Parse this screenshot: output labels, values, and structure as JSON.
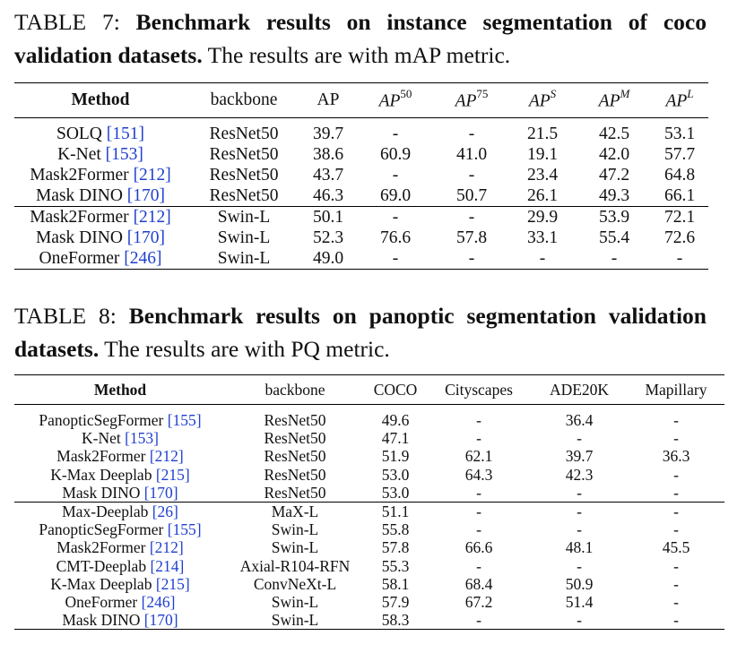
{
  "table7": {
    "caption_prefix": "TABLE 7: ",
    "caption_bold": "Benchmark results on instance segmentation of coco validation datasets.",
    "caption_rest": " The results are with mAP metric.",
    "headers": {
      "method": "Method",
      "backbone": "backbone",
      "ap": "AP",
      "ap50_base": "AP",
      "ap50_sup": "50",
      "ap75_base": "AP",
      "ap75_sup": "75",
      "aps_base": "AP",
      "aps_sup": "S",
      "apm_base": "AP",
      "apm_sup": "M",
      "apl_base": "AP",
      "apl_sup": "L"
    },
    "rows": [
      {
        "method": "SOLQ",
        "cite": "[151]",
        "backbone": "ResNet50",
        "ap": "39.7",
        "ap50": "-",
        "ap75": "-",
        "aps": "21.5",
        "apm": "42.5",
        "apl": "53.1"
      },
      {
        "method": "K-Net",
        "cite": "[153]",
        "backbone": "ResNet50",
        "ap": "38.6",
        "ap50": "60.9",
        "ap75": "41.0",
        "aps": "19.1",
        "apm": "42.0",
        "apl": "57.7"
      },
      {
        "method": "Mask2Former",
        "cite": "[212]",
        "backbone": "ResNet50",
        "ap": "43.7",
        "ap50": "-",
        "ap75": "-",
        "aps": "23.4",
        "apm": "47.2",
        "apl": "64.8"
      },
      {
        "method": "Mask DINO",
        "cite": "[170]",
        "backbone": "ResNet50",
        "ap": "46.3",
        "ap50": "69.0",
        "ap75": "50.7",
        "aps": "26.1",
        "apm": "49.3",
        "apl": "66.1"
      },
      {
        "method": "Mask2Former",
        "cite": "[212]",
        "backbone": "Swin-L",
        "ap": "50.1",
        "ap50": "-",
        "ap75": "-",
        "aps": "29.9",
        "apm": "53.9",
        "apl": "72.1"
      },
      {
        "method": "Mask DINO",
        "cite": "[170]",
        "backbone": "Swin-L",
        "ap": "52.3",
        "ap50": "76.6",
        "ap75": "57.8",
        "aps": "33.1",
        "apm": "55.4",
        "apl": "72.6"
      },
      {
        "method": "OneFormer",
        "cite": "[246]",
        "backbone": "Swin-L",
        "ap": "49.0",
        "ap50": "-",
        "ap75": "-",
        "aps": "-",
        "apm": "-",
        "apl": "-"
      }
    ]
  },
  "table8": {
    "caption_prefix": "TABLE 8: ",
    "caption_bold": "Benchmark results on panoptic segmentation validation datasets.",
    "caption_rest": " The results are with PQ metric.",
    "headers": {
      "method": "Method",
      "backbone": "backbone",
      "coco": "COCO",
      "cityscapes": "Cityscapes",
      "ade20k": "ADE20K",
      "mapillary": "Mapillary"
    },
    "rows": [
      {
        "method": "PanopticSegFormer",
        "cite": "[155]",
        "backbone": "ResNet50",
        "coco": "49.6",
        "cityscapes": "-",
        "ade20k": "36.4",
        "mapillary": "-"
      },
      {
        "method": "K-Net",
        "cite": "[153]",
        "backbone": "ResNet50",
        "coco": "47.1",
        "cityscapes": "-",
        "ade20k": "-",
        "mapillary": "-"
      },
      {
        "method": "Mask2Former",
        "cite": "[212]",
        "backbone": "ResNet50",
        "coco": "51.9",
        "cityscapes": "62.1",
        "ade20k": "39.7",
        "mapillary": "36.3"
      },
      {
        "method": "K-Max Deeplab",
        "cite": "[215]",
        "backbone": "ResNet50",
        "coco": "53.0",
        "cityscapes": "64.3",
        "ade20k": "42.3",
        "mapillary": "-"
      },
      {
        "method": "Mask DINO",
        "cite": "[170]",
        "backbone": "ResNet50",
        "coco": "53.0",
        "cityscapes": "-",
        "ade20k": "-",
        "mapillary": "-"
      },
      {
        "method": "Max-Deeplab",
        "cite": "[26]",
        "backbone": "MaX-L",
        "coco": "51.1",
        "cityscapes": "-",
        "ade20k": "-",
        "mapillary": "-"
      },
      {
        "method": "PanopticSegFormer",
        "cite": "[155]",
        "backbone": "Swin-L",
        "coco": "55.8",
        "cityscapes": "-",
        "ade20k": "-",
        "mapillary": "-"
      },
      {
        "method": "Mask2Former",
        "cite": "[212]",
        "backbone": "Swin-L",
        "coco": "57.8",
        "cityscapes": "66.6",
        "ade20k": "48.1",
        "mapillary": "45.5"
      },
      {
        "method": "CMT-Deeplab",
        "cite": "[214]",
        "backbone": "Axial-R104-RFN",
        "coco": "55.3",
        "cityscapes": "-",
        "ade20k": "-",
        "mapillary": "-"
      },
      {
        "method": "K-Max Deeplab",
        "cite": "[215]",
        "backbone": "ConvNeXt-L",
        "coco": "58.1",
        "cityscapes": "68.4",
        "ade20k": "50.9",
        "mapillary": "-"
      },
      {
        "method": "OneFormer",
        "cite": "[246]",
        "backbone": "Swin-L",
        "coco": "57.9",
        "cityscapes": "67.2",
        "ade20k": "51.4",
        "mapillary": "-"
      },
      {
        "method": "Mask DINO",
        "cite": "[170]",
        "backbone": "Swin-L",
        "coco": "58.3",
        "cityscapes": "-",
        "ade20k": "-",
        "mapillary": "-"
      }
    ]
  }
}
